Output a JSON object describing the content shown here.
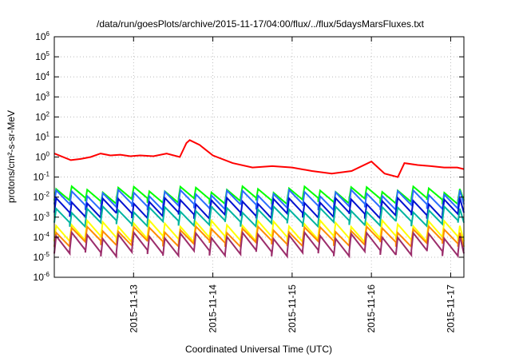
{
  "chart_data": {
    "type": "line",
    "title": "/data/run/goesPlots/archive/2015-11-17/04:00/flux/../flux/5daysMarsFluxes.txt",
    "xlabel": "Coordinated Universal Time (UTC)",
    "ylabel": "protons/cm²-s-sr-MeV",
    "yscale": "log",
    "ylim": [
      1e-06,
      1000000.0
    ],
    "xlim": [
      "2015-11-12 00:00",
      "2015-11-17 04:00"
    ],
    "y_ticks": [
      -6,
      -5,
      -4,
      -3,
      -2,
      -1,
      0,
      1,
      2,
      3,
      4,
      5,
      6
    ],
    "x_ticks": [
      "2015-11-13",
      "2015-11-14",
      "2015-11-15",
      "2015-11-16",
      "2015-11-17"
    ],
    "grid": true,
    "legend": "none",
    "series": [
      {
        "color": "#ff0000",
        "x": [
          "2015-11-12 00:00",
          "2015-11-12 05:00",
          "2015-11-12 08:00",
          "2015-11-12 11:00",
          "2015-11-12 14:00",
          "2015-11-12 17:00",
          "2015-11-12 20:00",
          "2015-11-12 23:00",
          "2015-11-13 02:00",
          "2015-11-13 06:00",
          "2015-11-13 10:00",
          "2015-11-13 14:00",
          "2015-11-13 16:00",
          "2015-11-13 17:00",
          "2015-11-13 20:00",
          "2015-11-14 00:00",
          "2015-11-14 06:00",
          "2015-11-14 12:00",
          "2015-11-14 18:00",
          "2015-11-15 00:00",
          "2015-11-15 06:00",
          "2015-11-15 12:00",
          "2015-11-15 18:00",
          "2015-11-16 00:00",
          "2015-11-16 04:00",
          "2015-11-16 08:00",
          "2015-11-16 10:00",
          "2015-11-16 14:00",
          "2015-11-16 18:00",
          "2015-11-16 22:00",
          "2015-11-17 02:00",
          "2015-11-17 04:00"
        ],
        "values": [
          1.5,
          0.7,
          0.8,
          1.0,
          1.5,
          1.2,
          1.3,
          1.1,
          1.2,
          1.1,
          1.5,
          1.0,
          5.0,
          7.0,
          4.0,
          1.2,
          0.5,
          0.3,
          0.35,
          0.3,
          0.2,
          0.15,
          0.2,
          0.6,
          0.15,
          0.1,
          0.5,
          0.4,
          0.35,
          0.3,
          0.3,
          0.25
        ]
      },
      {
        "color": "#00ff00",
        "baseline": 0.008,
        "peak": 0.03
      },
      {
        "color": "#2b6cff",
        "baseline": 0.004,
        "peak": 0.02
      },
      {
        "color": "#0010d0",
        "baseline": 0.0015,
        "peak": 0.008
      },
      {
        "color": "#00b4a0",
        "baseline": 0.0006,
        "peak": 0.003
      },
      {
        "color": "#ffff00",
        "baseline": 0.0001,
        "peak": 0.0006
      },
      {
        "color": "#ff8c00",
        "baseline": 6e-05,
        "peak": 0.0003
      },
      {
        "color": "#9b2d6b",
        "baseline": 2e-05,
        "peak": 0.00015
      }
    ]
  }
}
